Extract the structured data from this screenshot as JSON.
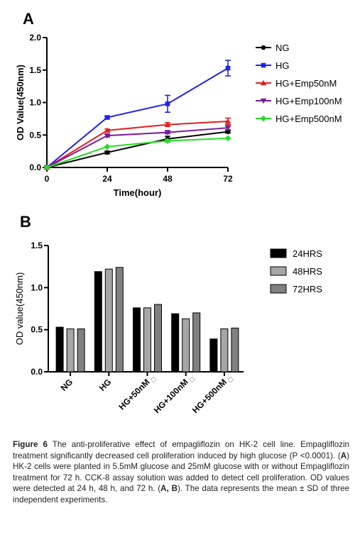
{
  "panels": [
    "A",
    "B"
  ],
  "chart_data": [
    {
      "type": "line",
      "title": "",
      "xlabel": "Time(hour)",
      "ylabel": "OD Value(450nm)",
      "x": [
        0,
        24,
        48,
        72
      ],
      "xticks": [
        "0",
        "24",
        "48",
        "72"
      ],
      "yticks": [
        "0.0",
        "0.5",
        "1.0",
        "1.5",
        "2.0"
      ],
      "xlim": [
        0,
        72
      ],
      "ylim": [
        0,
        2.0
      ],
      "grid": false,
      "legend": "right",
      "series": [
        {
          "name": "NG",
          "color": "#000000",
          "marker": "circle",
          "values": [
            0.0,
            0.23,
            0.44,
            0.55
          ],
          "errors": [
            0,
            0.02,
            0.04,
            0.02
          ]
        },
        {
          "name": "HG",
          "color": "#2222ee",
          "marker": "square",
          "values": [
            0.0,
            0.77,
            0.98,
            1.53
          ],
          "errors": [
            0,
            0.02,
            0.13,
            0.12
          ]
        },
        {
          "name": "HG+Emp50nM",
          "color": "#e02020",
          "marker": "triangle-up",
          "values": [
            0.0,
            0.57,
            0.66,
            0.71
          ],
          "errors": [
            0,
            0.02,
            0.03,
            0.05
          ]
        },
        {
          "name": "HG+Emp100nM",
          "color": "#7a1aa0",
          "marker": "triangle-down",
          "values": [
            0.0,
            0.49,
            0.54,
            0.61
          ],
          "errors": [
            0,
            0.02,
            0.02,
            0.03
          ]
        },
        {
          "name": "HG+Emp500nM",
          "color": "#22dd22",
          "marker": "diamond",
          "values": [
            0.0,
            0.32,
            0.41,
            0.45
          ],
          "errors": [
            0,
            0.01,
            0.02,
            0.01
          ]
        }
      ]
    },
    {
      "type": "bar",
      "title": "",
      "xlabel": "",
      "ylabel": "OD value(450nm)",
      "categories": [
        "NG",
        "HG",
        "HG+50nM",
        "HG+100nM",
        "HG+500nM"
      ],
      "yticks": [
        "0.0",
        "0.5",
        "1.0",
        "1.5"
      ],
      "ylim": [
        0,
        1.5
      ],
      "grid": false,
      "legend": "right",
      "series": [
        {
          "name": "24HRS",
          "color": "#000000",
          "values": [
            0.53,
            1.19,
            0.76,
            0.69,
            0.39
          ]
        },
        {
          "name": "48HRS",
          "color": "#a6a6a6",
          "values": [
            0.51,
            1.22,
            0.76,
            0.63,
            0.51
          ]
        },
        {
          "name": "72HRS",
          "color": "#808080",
          "values": [
            0.51,
            1.24,
            0.8,
            0.7,
            0.52
          ]
        }
      ],
      "annotations": [
        "◇",
        "◇",
        "◇"
      ]
    }
  ],
  "caption": {
    "label": "Figure 6",
    "text_1": " The anti-proliferative effect of empagliflozin on HK-2 cell line. Empagliflozin treatment significantly decreased cell proliferation induced by high glucose (P <0.0001). (",
    "ref_a": "A",
    "text_2": ") HK-2 cells were planted in 5.5mM glucose and 25mM glucose with or without Empagliflozin treatment for 72 h. CCK-8 assay solution was added to detect cell proliferation. OD values were detected at 24 h, 48 h, and 72 h. (",
    "ref_ab": "A, B",
    "text_3": "). The data represents the mean ± SD of three independent experiments."
  }
}
